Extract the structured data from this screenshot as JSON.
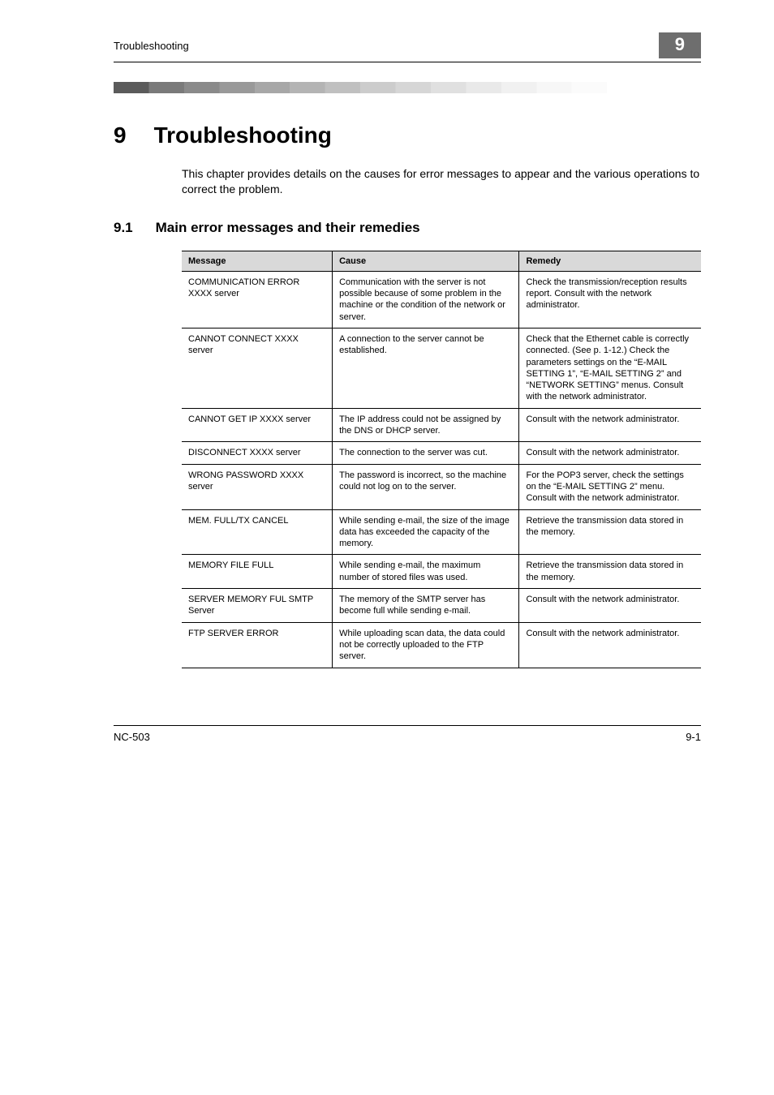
{
  "header": {
    "running": "Troubleshooting",
    "badge": "9"
  },
  "chapter": {
    "number": "9",
    "title": "Troubleshooting"
  },
  "intro": "This chapter provides details on the causes for error messages to appear and the various operations to correct the problem.",
  "section": {
    "number": "9.1",
    "title": "Main error messages and their remedies"
  },
  "table": {
    "columns": [
      "Message",
      "Cause",
      "Remedy"
    ],
    "rows": [
      {
        "message": "COMMUNICATION ERROR XXXX server",
        "cause": "Communication with the server is not possible because of some problem in the machine or the condition of the network or server.",
        "remedy": "Check the transmission/reception results report. Consult with the network administrator."
      },
      {
        "message": "CANNOT CONNECT XXXX server",
        "cause": "A connection to the server cannot be established.",
        "remedy": "Check that the Ethernet cable is correctly connected. (See p. 1-12.) Check the parameters settings on the “E-MAIL SETTING 1”, “E-MAIL SETTING 2” and “NETWORK SETTING” menus. Consult with the network administrator."
      },
      {
        "message": "CANNOT GET IP XXXX server",
        "cause": "The IP address could not be assigned by the DNS or DHCP server.",
        "remedy": "Consult with the network administrator."
      },
      {
        "message": "DISCONNECT XXXX server",
        "cause": "The connection to the server was cut.",
        "remedy": "Consult with the network administrator."
      },
      {
        "message": "WRONG PASSWORD XXXX server",
        "cause": "The password is incorrect, so the machine could not log on to the server.",
        "remedy": "For the POP3 server, check the settings on the “E-MAIL SETTING 2” menu. Consult with the network administrator."
      },
      {
        "message": "MEM. FULL/TX CANCEL",
        "cause": "While sending e-mail, the size of the image data has exceeded the capacity of the memory.",
        "remedy": "Retrieve the transmission data stored in the memory."
      },
      {
        "message": "MEMORY FILE FULL",
        "cause": "While sending e-mail, the maximum number of stored files was used.",
        "remedy": "Retrieve the transmission data stored in the memory."
      },
      {
        "message": "SERVER MEMORY FUL SMTP Server",
        "cause": "The memory of the SMTP server has become full while sending e-mail.",
        "remedy": "Consult with the network administrator."
      },
      {
        "message": "FTP SERVER ERROR",
        "cause": "While uploading scan data, the data could not be correctly uploaded to the FTP server.",
        "remedy": "Consult with the network administrator."
      }
    ]
  },
  "footer": {
    "left": "NC-503",
    "right": "9-1"
  }
}
